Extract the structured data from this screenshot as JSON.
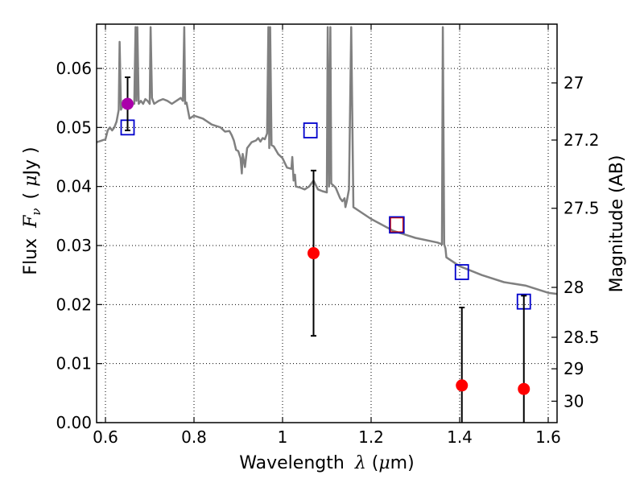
{
  "chart_data": {
    "type": "scatter",
    "title": "",
    "xlabel": "Wavelength",
    "xlabel_symbol": "λ",
    "xlabel_unit_prefix": "(",
    "xlabel_unit_mu": "μ",
    "xlabel_unit_suffix": "m)",
    "ylabel": "Flux",
    "ylabel_symbol": "F",
    "ylabel_symbol_sub": "ν",
    "ylabel_unit_prefix": "(",
    "ylabel_unit_mu": "μ",
    "ylabel_unit_suffix": "Jy )",
    "y2label": "Magnitude (AB)",
    "xlim": [
      0.58,
      1.62
    ],
    "ylim": [
      0,
      0.0675
    ],
    "grid": true,
    "x_ticks": [
      0.6,
      0.8,
      1.0,
      1.2,
      1.4,
      1.6
    ],
    "x_tick_labels": [
      "0.6",
      "0.8",
      "1",
      "1.2",
      "1.4",
      "1.6"
    ],
    "y_ticks": [
      0.0,
      0.01,
      0.02,
      0.03,
      0.04,
      0.05,
      0.06
    ],
    "y_tick_labels": [
      "0.00",
      "0.01",
      "0.02",
      "0.03",
      "0.04",
      "0.05",
      "0.06"
    ],
    "y2_ticks": [
      27,
      27.2,
      27.5,
      28,
      28.5,
      29,
      30
    ],
    "y2_tick_labels": [
      "27",
      "27.2",
      "27.5",
      "28",
      "28.5",
      "29",
      "30"
    ],
    "colors": {
      "spectrum": "#808080",
      "model_box": "#0000cc",
      "model_box_highlight": "#cc0000",
      "observed": "#ff0000",
      "observed_highlight": "#aa00aa",
      "errorbar": "#000000",
      "grid": "#000000"
    },
    "series": [
      {
        "kind": "line",
        "x": [
          0.58,
          0.6,
          0.605,
          0.61,
          0.615,
          0.62,
          0.625,
          0.63,
          0.632,
          0.635,
          0.638,
          0.64,
          0.645,
          0.65,
          0.655,
          0.66,
          0.665,
          0.668,
          0.67,
          0.672,
          0.675,
          0.68,
          0.685,
          0.69,
          0.695,
          0.7,
          0.702,
          0.705,
          0.71,
          0.72,
          0.73,
          0.74,
          0.75,
          0.76,
          0.77,
          0.775,
          0.778,
          0.78,
          0.783,
          0.79,
          0.8,
          0.82,
          0.84,
          0.86,
          0.87,
          0.88,
          0.885,
          0.89,
          0.895,
          0.9,
          0.905,
          0.908,
          0.91,
          0.915,
          0.92,
          0.93,
          0.94,
          0.945,
          0.95,
          0.955,
          0.96,
          0.965,
          0.968,
          0.97,
          0.972,
          0.975,
          0.98,
          0.99,
          1.0,
          1.01,
          1.02,
          1.022,
          1.025,
          1.028,
          1.03,
          1.04,
          1.05,
          1.06,
          1.07,
          1.08,
          1.09,
          1.1,
          1.102,
          1.105,
          1.108,
          1.11,
          1.12,
          1.13,
          1.135,
          1.14,
          1.142,
          1.145,
          1.15,
          1.155,
          1.16,
          1.17,
          1.2,
          1.25,
          1.3,
          1.35,
          1.36,
          1.362,
          1.365,
          1.368,
          1.37,
          1.4,
          1.45,
          1.5,
          1.55,
          1.6,
          1.62
        ],
        "y": [
          0.0475,
          0.048,
          0.0495,
          0.05,
          0.0495,
          0.05,
          0.051,
          0.053,
          0.0645,
          0.053,
          0.0535,
          0.0545,
          0.054,
          0.053,
          0.054,
          0.054,
          0.054,
          0.067,
          0.0545,
          0.067,
          0.054,
          0.0545,
          0.054,
          0.0548,
          0.0545,
          0.054,
          0.067,
          0.055,
          0.054,
          0.0545,
          0.0548,
          0.0545,
          0.054,
          0.0545,
          0.055,
          0.0545,
          0.067,
          0.054,
          0.0542,
          0.0515,
          0.052,
          0.0515,
          0.0505,
          0.05,
          0.0493,
          0.0494,
          0.0487,
          0.0478,
          0.0462,
          0.046,
          0.0448,
          0.0422,
          0.0455,
          0.0433,
          0.0465,
          0.0475,
          0.0478,
          0.0482,
          0.0476,
          0.0482,
          0.048,
          0.049,
          0.067,
          0.0465,
          0.067,
          0.047,
          0.0468,
          0.0455,
          0.0448,
          0.0432,
          0.043,
          0.045,
          0.041,
          0.042,
          0.04,
          0.0398,
          0.0395,
          0.04,
          0.041,
          0.0395,
          0.0392,
          0.039,
          0.067,
          0.04,
          0.067,
          0.0405,
          0.0398,
          0.038,
          0.0375,
          0.038,
          0.0365,
          0.0375,
          0.0395,
          0.067,
          0.0365,
          0.036,
          0.0345,
          0.0325,
          0.0313,
          0.0305,
          0.0302,
          0.067,
          0.0302,
          0.0295,
          0.028,
          0.0265,
          0.025,
          0.0238,
          0.0232,
          0.022,
          0.0218
        ]
      },
      {
        "kind": "model_boxes",
        "x": [
          0.65,
          1.063,
          1.258,
          1.405,
          1.545
        ],
        "y": [
          0.05,
          0.0495,
          0.0335,
          0.0255,
          0.0205
        ],
        "highlight_index": 2
      },
      {
        "kind": "observed",
        "x": [
          0.65,
          1.07,
          1.405,
          1.545
        ],
        "y": [
          0.054,
          0.0287,
          0.0063,
          0.0057
        ],
        "yerr": [
          0.0045,
          0.014,
          0.0132,
          0.0158
        ],
        "highlight_index": 0
      }
    ]
  }
}
